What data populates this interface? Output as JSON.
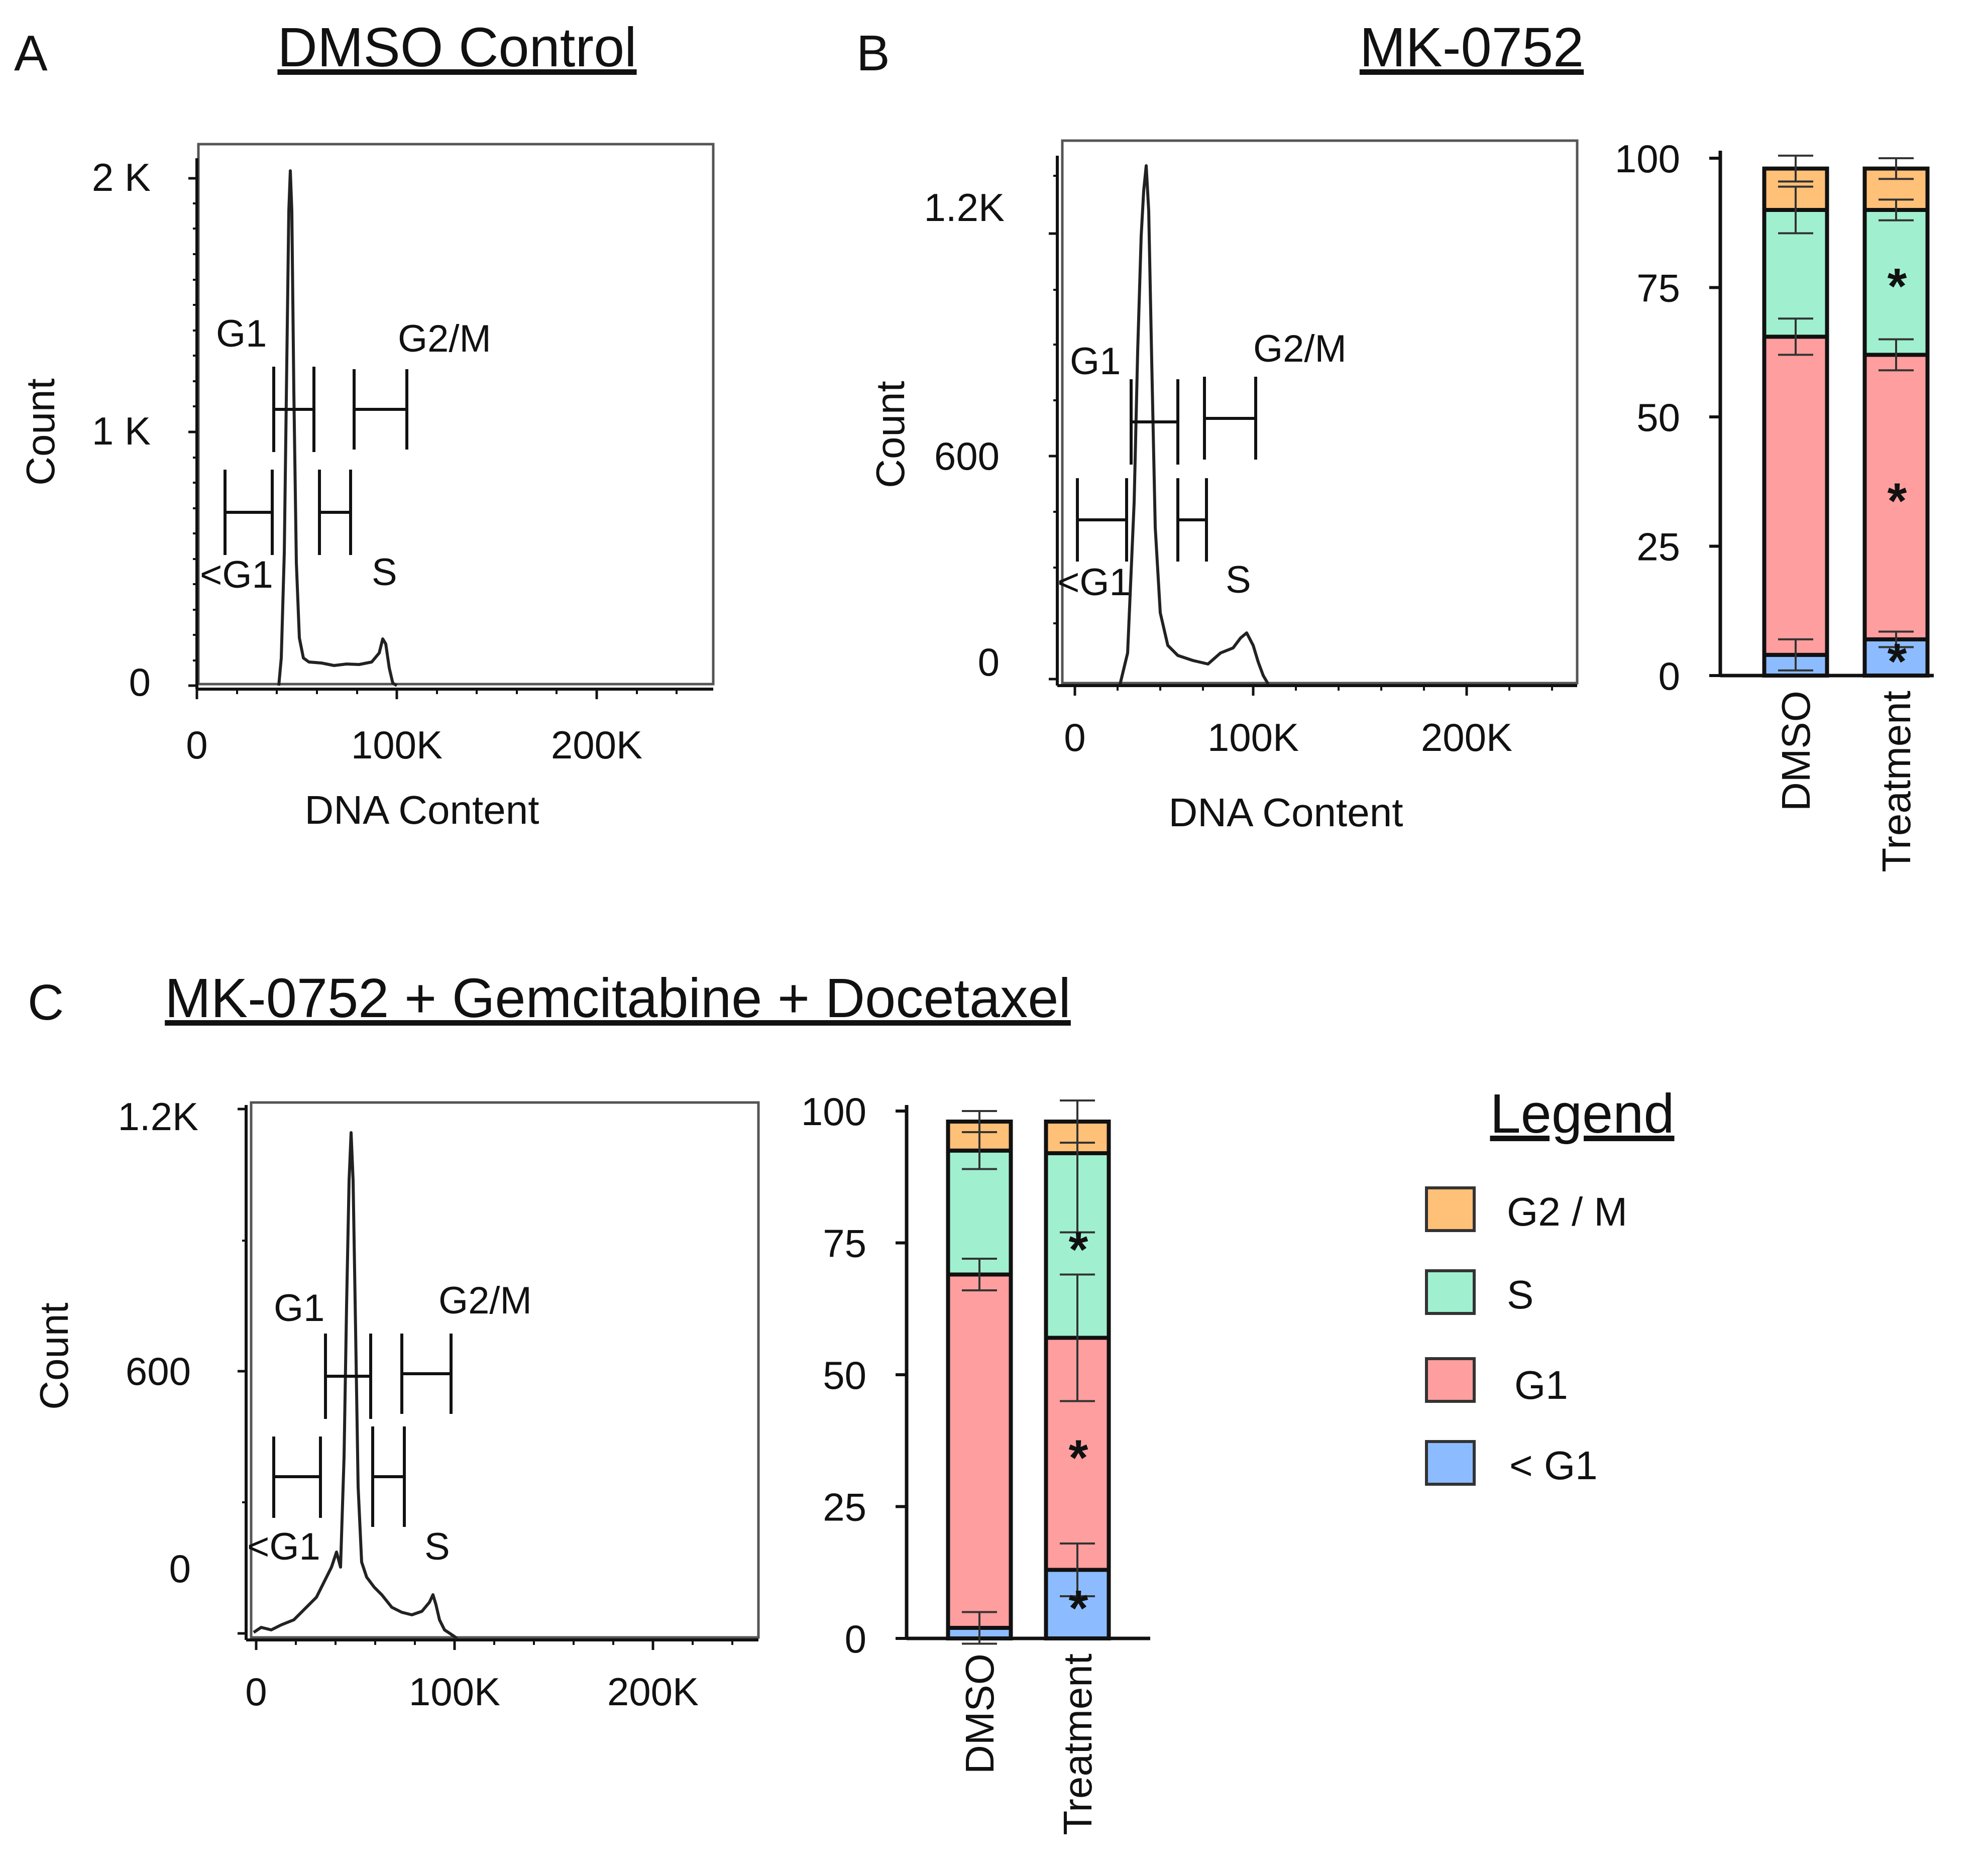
{
  "panels": {
    "A": {
      "letter": "A",
      "title": "DMSO Control",
      "histogram": {
        "y_ticks": [
          "2 K",
          "1 K",
          "0"
        ],
        "y_label": "Count",
        "x_ticks": [
          "0",
          "100K",
          "200K"
        ],
        "x_label": "DNA Content",
        "gates": {
          "g1": "G1",
          "g2m": "G2/M",
          "subg1": "<G1",
          "s": "S"
        }
      }
    },
    "B": {
      "letter": "B",
      "title": "MK-0752",
      "histogram": {
        "y_ticks": [
          "1.2K",
          "600",
          "0"
        ],
        "y_label": "Count",
        "x_ticks": [
          "0",
          "100K",
          "200K"
        ],
        "x_label": "DNA Content",
        "gates": {
          "g1": "G1",
          "g2m": "G2/M",
          "subg1": "<G1",
          "s": "S"
        }
      }
    },
    "C": {
      "letter": "C",
      "title": "MK-0752 + Gemcitabine + Docetaxel",
      "histogram": {
        "y_ticks": [
          "1.2K",
          "600",
          "0"
        ],
        "y_label": "Count",
        "x_ticks": [
          "0",
          "100K",
          "200K"
        ],
        "x_label": "",
        "gates": {
          "g1": "G1",
          "g2m": "G2/M",
          "subg1": "<G1",
          "s": "S"
        }
      }
    }
  },
  "legend": {
    "title": "Legend",
    "items": [
      {
        "label": "G2 / M",
        "color": "#FFC078"
      },
      {
        "label": "S",
        "color": "#A0F0D0"
      },
      {
        "label": "G1",
        "color": "#FF9E9E"
      },
      {
        "label": "< G1",
        "color": "#8CBCFF"
      }
    ]
  },
  "chart_data": [
    {
      "type": "bar",
      "stacked": true,
      "panel": "B",
      "title": "",
      "xlabel": "",
      "ylabel": "",
      "ylim": [
        0,
        100
      ],
      "y_ticks": [
        "100",
        "75",
        "50",
        "25",
        "0"
      ],
      "categories": [
        "DMSO",
        "Treatment"
      ],
      "series": [
        {
          "name": "< G1",
          "color": "#8CBCFF",
          "values": [
            4,
            7
          ],
          "error": [
            3,
            1.5
          ],
          "significant": [
            false,
            true
          ]
        },
        {
          "name": "G1",
          "color": "#FF9E9E",
          "values": [
            61.5,
            55
          ],
          "error": [
            3.5,
            3
          ],
          "significant": [
            false,
            true
          ]
        },
        {
          "name": "S",
          "color": "#A0F0D0",
          "values": [
            24.5,
            28
          ],
          "error": [
            4.5,
            2
          ],
          "significant": [
            false,
            true
          ]
        },
        {
          "name": "G2 / M",
          "color": "#FFC078",
          "values": [
            8,
            8
          ],
          "error": [
            2.5,
            2
          ],
          "significant": [
            false,
            false
          ]
        }
      ],
      "significance_mark": "*"
    },
    {
      "type": "bar",
      "stacked": true,
      "panel": "C",
      "title": "",
      "xlabel": "",
      "ylabel": "",
      "ylim": [
        0,
        100
      ],
      "y_ticks": [
        "100",
        "75",
        "50",
        "25",
        "0"
      ],
      "categories": [
        "DMSO",
        "Treatment"
      ],
      "series": [
        {
          "name": "< G1",
          "color": "#8CBCFF",
          "values": [
            2,
            13
          ],
          "error": [
            3,
            5
          ],
          "significant": [
            false,
            true
          ]
        },
        {
          "name": "G1",
          "color": "#FF9E9E",
          "values": [
            67,
            44
          ],
          "error": [
            3,
            12
          ],
          "significant": [
            false,
            true
          ]
        },
        {
          "name": "S",
          "color": "#A0F0D0",
          "values": [
            23.5,
            35
          ],
          "error": [
            3.5,
            15
          ],
          "significant": [
            false,
            true
          ]
        },
        {
          "name": "G2 / M",
          "color": "#FFC078",
          "values": [
            5.5,
            6
          ],
          "error": [
            2,
            4
          ],
          "significant": [
            false,
            false
          ]
        }
      ],
      "significance_mark": "*"
    }
  ]
}
